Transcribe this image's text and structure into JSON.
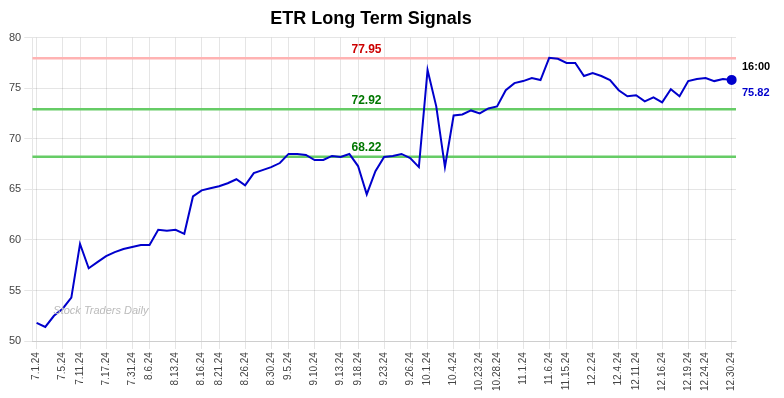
{
  "chart_data": {
    "type": "line",
    "title": "ETR Long Term Signals",
    "color": "#0000cc",
    "categories": [
      "7.1.24",
      null,
      null,
      "7.5.24",
      null,
      "7.11.24",
      null,
      null,
      "7.17.24",
      null,
      null,
      "7.31.24",
      null,
      "8.6.24",
      null,
      null,
      "8.13.24",
      null,
      null,
      "8.16.24",
      null,
      "8.21.24",
      null,
      null,
      "8.26.24",
      null,
      null,
      "8.30.24",
      null,
      "9.5.24",
      null,
      null,
      "9.10.24",
      null,
      null,
      "9.13.24",
      null,
      "9.18.24",
      null,
      null,
      "9.23.24",
      null,
      null,
      "9.26.24",
      null,
      "10.1.24",
      null,
      null,
      "10.4.24",
      null,
      null,
      "10.23.24",
      null,
      "10.28.24",
      null,
      null,
      "11.1.24",
      null,
      null,
      "11.6.24",
      null,
      "11.15.24",
      null,
      null,
      "12.2.24",
      null,
      null,
      "12.4.24",
      null,
      "12.11.24",
      null,
      null,
      "12.16.24",
      null,
      null,
      "12.19.24",
      null,
      "12.24.24",
      null,
      null,
      "12.30.24"
    ],
    "values": [
      51.8,
      51.4,
      52.5,
      53.2,
      54.3,
      59.6,
      57.2,
      57.8,
      58.4,
      58.8,
      59.1,
      59.3,
      59.5,
      59.5,
      61.0,
      60.9,
      61.0,
      60.6,
      64.3,
      64.9,
      65.1,
      65.3,
      65.6,
      66.0,
      65.4,
      66.6,
      66.9,
      67.2,
      67.6,
      68.5,
      68.5,
      68.4,
      67.9,
      67.9,
      68.3,
      68.2,
      68.5,
      67.3,
      64.5,
      66.8,
      68.2,
      68.3,
      68.5,
      68.1,
      67.2,
      76.8,
      73.2,
      67.2,
      72.3,
      72.4,
      72.8,
      72.5,
      73.0,
      73.2,
      74.8,
      75.5,
      75.7,
      76.0,
      75.8,
      78.0,
      77.9,
      77.5,
      77.5,
      76.2,
      76.5,
      76.2,
      75.8,
      74.8,
      74.2,
      74.3,
      73.7,
      74.1,
      73.6,
      74.9,
      74.2,
      75.7,
      75.9,
      76.0,
      75.7,
      75.9,
      75.82
    ],
    "ylim": [
      50,
      80
    ],
    "yticks": [
      50,
      55,
      60,
      65,
      70,
      75,
      80
    ],
    "grid": true,
    "hlines": [
      {
        "y": 77.95,
        "label": "77.95",
        "color": "#ffb3b3",
        "label_color": "#cc0000"
      },
      {
        "y": 72.92,
        "label": "72.92",
        "color": "#66cc66",
        "label_color": "#007700"
      },
      {
        "y": 68.22,
        "label": "68.22",
        "color": "#66cc66",
        "label_color": "#007700"
      }
    ],
    "last_point": {
      "time": "16:00",
      "value": 75.82
    },
    "watermark": "Stock Traders Daily"
  }
}
